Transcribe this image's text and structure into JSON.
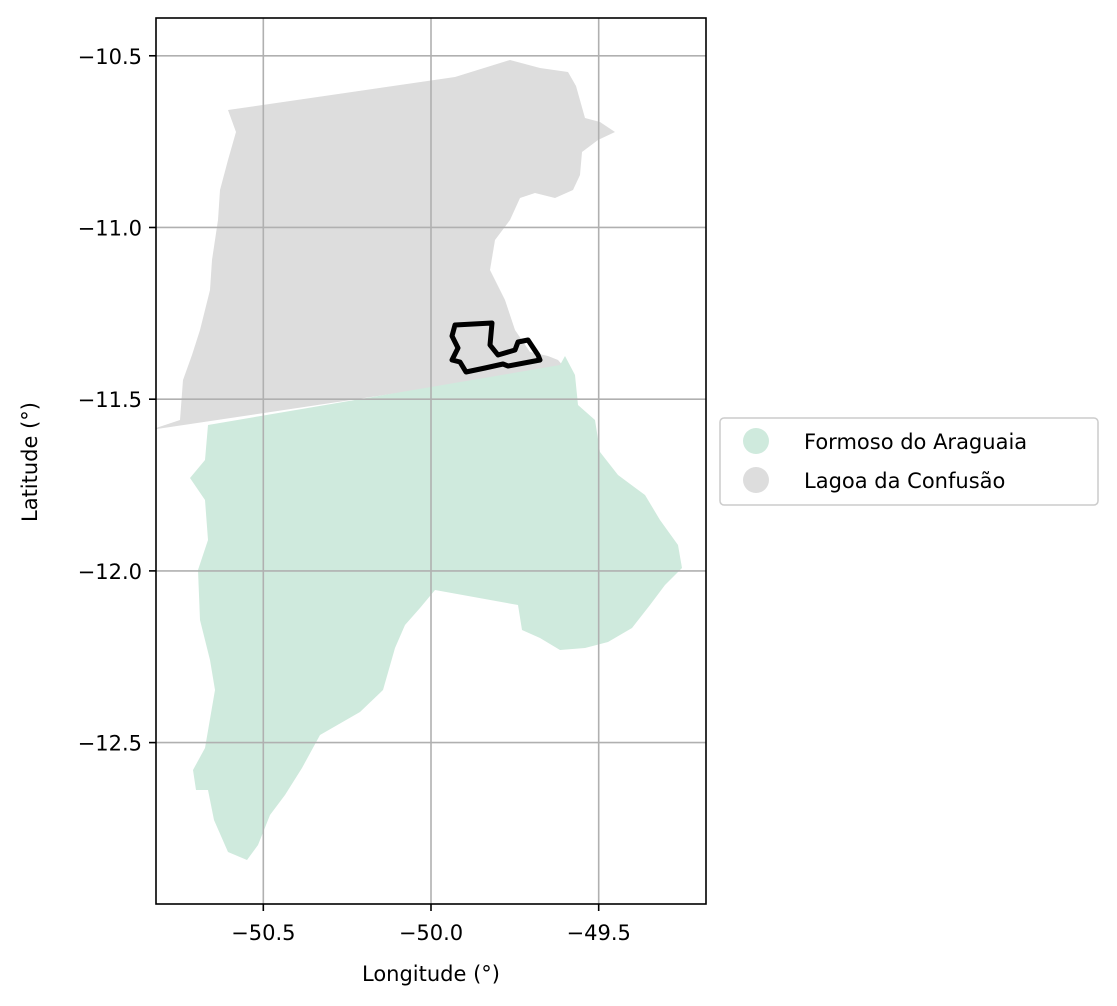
{
  "chart_data": {
    "type": "map",
    "xlabel": "Longitude (°)",
    "ylabel": "Latitude (°)",
    "xlim": [
      -50.82,
      -49.18
    ],
    "ylim": [
      -12.97,
      -10.39
    ],
    "x_ticks": [
      {
        "value": -50.5,
        "label": "−50.5"
      },
      {
        "value": -50.0,
        "label": "−50.0"
      },
      {
        "value": -49.5,
        "label": "−49.5"
      }
    ],
    "y_ticks": [
      {
        "value": -10.5,
        "label": "−10.5"
      },
      {
        "value": -11.0,
        "label": "−11.0"
      },
      {
        "value": -11.5,
        "label": "−11.5"
      },
      {
        "value": -12.0,
        "label": "−12.0"
      },
      {
        "value": -12.5,
        "label": "−12.5"
      }
    ],
    "grid": true,
    "legend_position": "right",
    "regions": [
      {
        "name": "Formoso do Araguaia",
        "color": "#cfeadd"
      },
      {
        "name": "Lagoa da Confusão",
        "color": "#dddddd"
      }
    ],
    "highlight_outline": {
      "color": "#000000"
    }
  }
}
